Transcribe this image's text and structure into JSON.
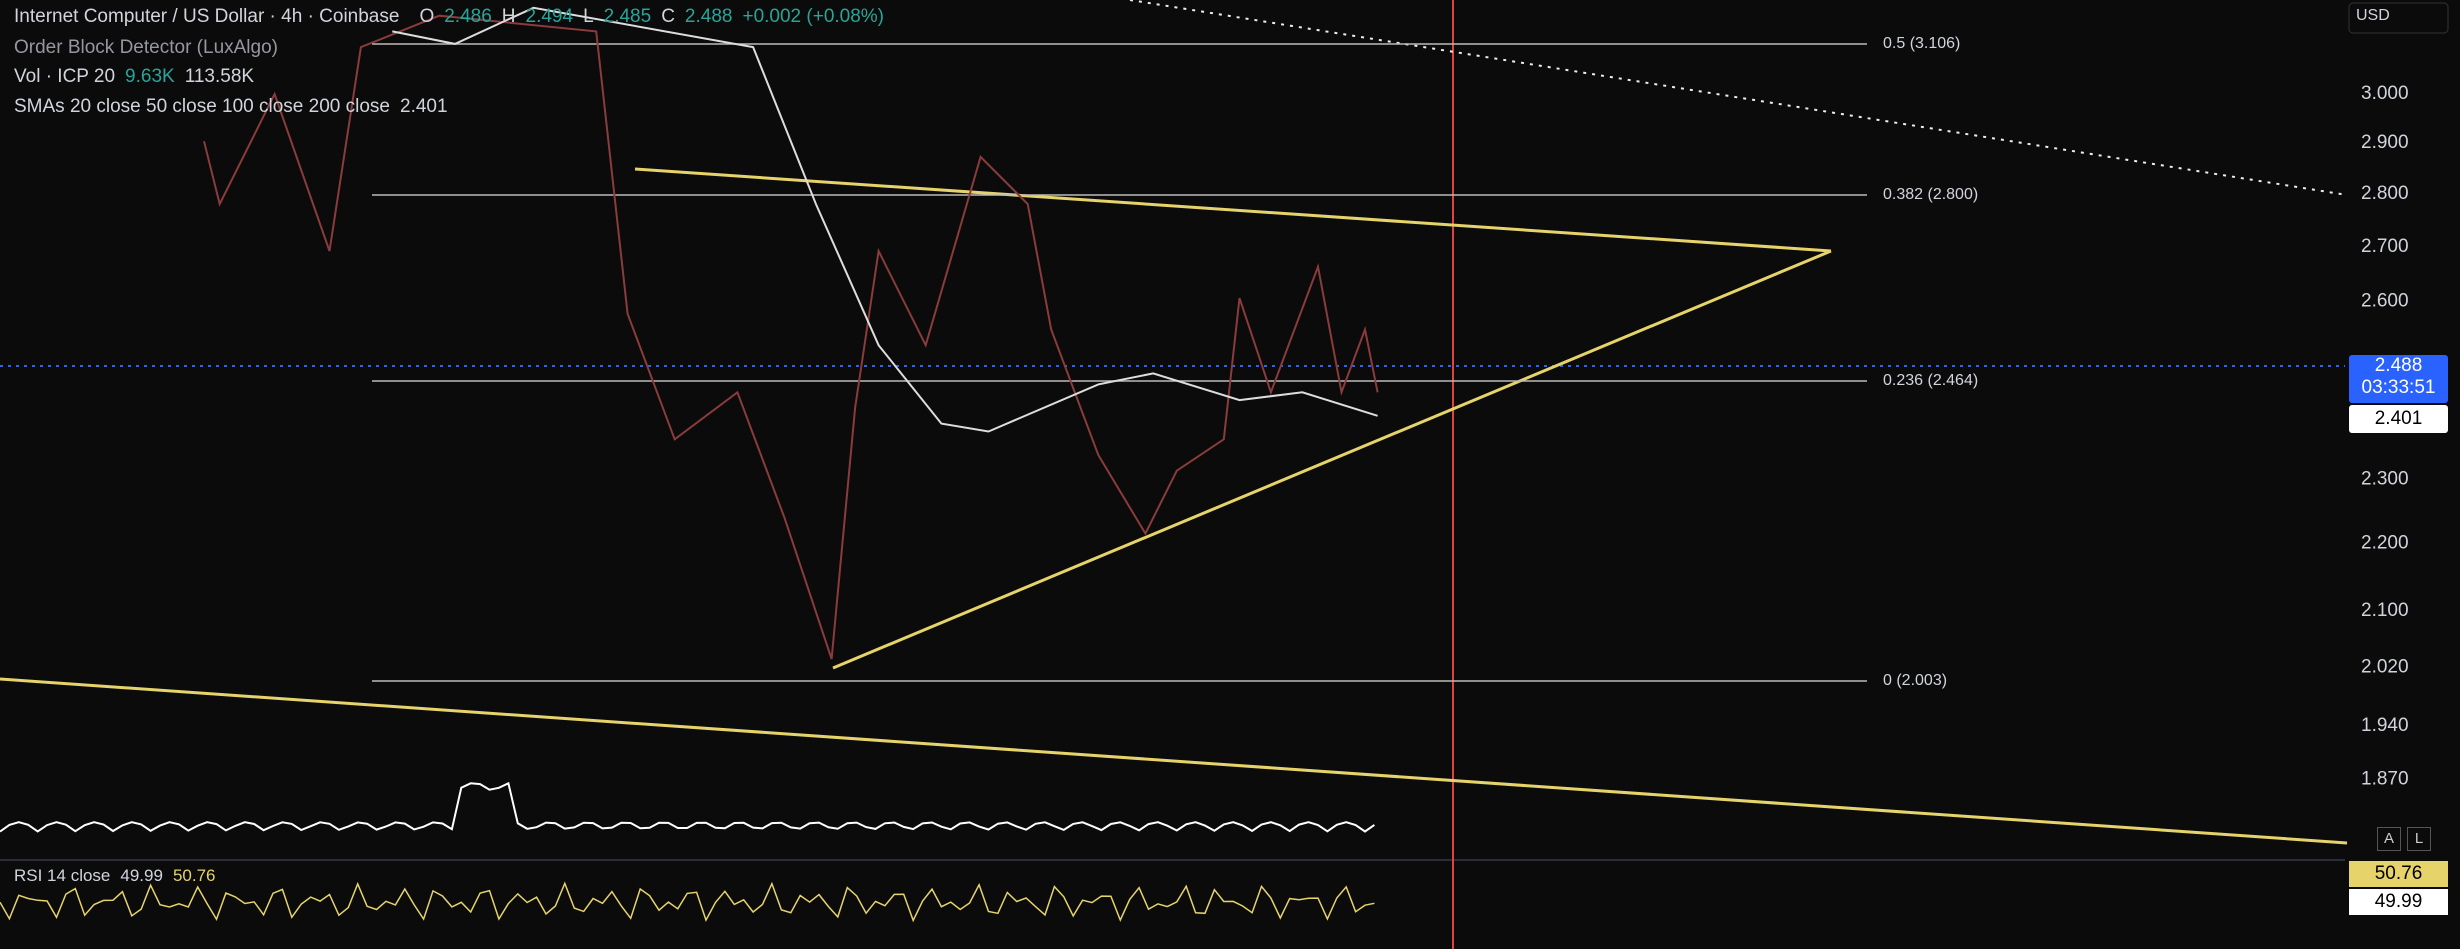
{
  "header": {
    "symbol": "Internet Computer / US Dollar · 4h · Coinbase",
    "open_label": "O",
    "open": "2.486",
    "high_label": "H",
    "high": "2.494",
    "low_label": "L",
    "low": "2.485",
    "close_label": "C",
    "close": "2.488",
    "change": "+0.002 (+0.08%)"
  },
  "indicators": {
    "order_block": "Order Block Detector (LuxAlgo)",
    "volume": "Vol · ICP 20",
    "volume_value": "9.63K",
    "volume_ma": "113.58K",
    "smas": "SMAs 20 close 50 close 100 close 200 close",
    "sma_value": "2.401"
  },
  "currency": "USD",
  "price_axis": [
    "3.000",
    "2.900",
    "2.800",
    "2.700",
    "2.600",
    "2.300",
    "2.200",
    "2.100",
    "2.020",
    "1.940",
    "1.870"
  ],
  "fib_levels": [
    "0.5 (3.106)",
    "0.382 (2.800)",
    "0.236 (2.464)",
    "0 (2.003)"
  ],
  "price_tag": {
    "price": "2.488",
    "countdown": "03:33:51",
    "sma": "2.401"
  },
  "rsi": {
    "label": "RSI 14 close",
    "value": "49.99",
    "ma": "50.76",
    "tag_ma": "50.76",
    "tag_value": "49.99"
  },
  "buttons": [
    "A",
    "L"
  ]
}
